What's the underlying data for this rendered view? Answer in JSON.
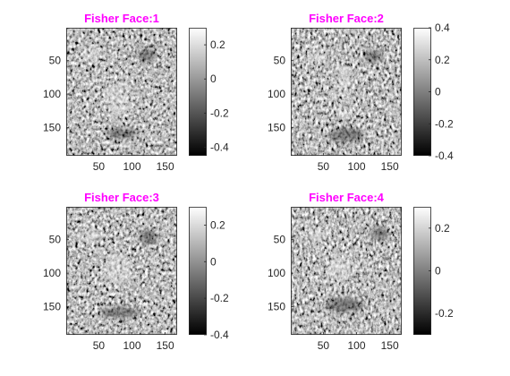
{
  "colors": {
    "title": "#ff00ff",
    "axis": "#262626",
    "background": "#ffffff"
  },
  "chart_data": [
    {
      "type": "heatmap",
      "title": "Fisher Face:1",
      "colormap": "gray",
      "x_ticks": [
        50,
        100,
        150
      ],
      "y_ticks": [
        50,
        100,
        150
      ],
      "xlim": [
        1,
        168
      ],
      "ylim": [
        1,
        192
      ],
      "y_reversed": true,
      "colorbar": {
        "ticks": [
          "0.2",
          "0",
          "-0.2",
          "-0.4"
        ],
        "tick_values": [
          0.2,
          0,
          -0.2,
          -0.4
        ],
        "range": [
          -0.45,
          0.3
        ]
      }
    },
    {
      "type": "heatmap",
      "title": "Fisher Face:2",
      "colormap": "gray",
      "x_ticks": [
        50,
        100,
        150
      ],
      "y_ticks": [
        50,
        100,
        150
      ],
      "xlim": [
        1,
        168
      ],
      "ylim": [
        1,
        192
      ],
      "y_reversed": true,
      "colorbar": {
        "ticks": [
          "0.4",
          "0.2",
          "0",
          "-0.2",
          "-0.4"
        ],
        "tick_values": [
          0.4,
          0.2,
          0,
          -0.2,
          -0.4
        ],
        "range": [
          -0.4,
          0.4
        ]
      }
    },
    {
      "type": "heatmap",
      "title": "Fisher Face:3",
      "colormap": "gray",
      "x_ticks": [
        50,
        100,
        150
      ],
      "y_ticks": [
        50,
        100,
        150
      ],
      "xlim": [
        1,
        168
      ],
      "ylim": [
        1,
        192
      ],
      "y_reversed": true,
      "colorbar": {
        "ticks": [
          "0.2",
          "0",
          "-0.2",
          "-0.4"
        ],
        "tick_values": [
          0.2,
          0,
          -0.2,
          -0.4
        ],
        "range": [
          -0.4,
          0.3
        ]
      }
    },
    {
      "type": "heatmap",
      "title": "Fisher Face:4",
      "colormap": "gray",
      "x_ticks": [
        50,
        100,
        150
      ],
      "y_ticks": [
        50,
        100,
        150
      ],
      "xlim": [
        1,
        168
      ],
      "ylim": [
        1,
        192
      ],
      "y_reversed": true,
      "colorbar": {
        "ticks": [
          "0.2",
          "0",
          "-0.2"
        ],
        "tick_values": [
          0.2,
          0,
          -0.2
        ],
        "range": [
          -0.3,
          0.3
        ]
      }
    }
  ]
}
